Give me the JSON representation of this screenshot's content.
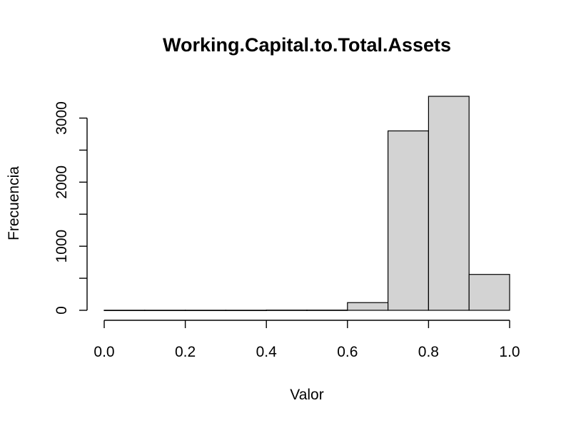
{
  "chart_data": {
    "type": "bar",
    "title": "Working.Capital.to.Total.Assets",
    "xlabel": "Valor",
    "ylabel": "Frecuencia",
    "bins": [
      {
        "from": 0.0,
        "to": 0.1,
        "count": 1
      },
      {
        "from": 0.1,
        "to": 0.2,
        "count": 1
      },
      {
        "from": 0.2,
        "to": 0.3,
        "count": 1
      },
      {
        "from": 0.3,
        "to": 0.4,
        "count": 1
      },
      {
        "from": 0.4,
        "to": 0.5,
        "count": 3
      },
      {
        "from": 0.5,
        "to": 0.6,
        "count": 3
      },
      {
        "from": 0.6,
        "to": 0.7,
        "count": 120
      },
      {
        "from": 0.7,
        "to": 0.8,
        "count": 2800
      },
      {
        "from": 0.8,
        "to": 0.9,
        "count": 3340
      },
      {
        "from": 0.9,
        "to": 1.0,
        "count": 560
      }
    ],
    "xlim": [
      0,
      1
    ],
    "ylim": [
      0,
      3340
    ],
    "xticks": [
      0.0,
      0.2,
      0.4,
      0.6,
      0.8,
      1.0
    ],
    "xtick_labels": [
      "0.0",
      "0.2",
      "0.4",
      "0.6",
      "0.8",
      "1.0"
    ],
    "yticks": [
      0,
      500,
      1000,
      1500,
      2000,
      2500,
      3000
    ],
    "ytick_labels": [
      "0",
      "",
      "1000",
      "",
      "2000",
      "",
      "3000"
    ],
    "bar_color": "#d3d3d3",
    "grid": false,
    "legend": "none"
  }
}
